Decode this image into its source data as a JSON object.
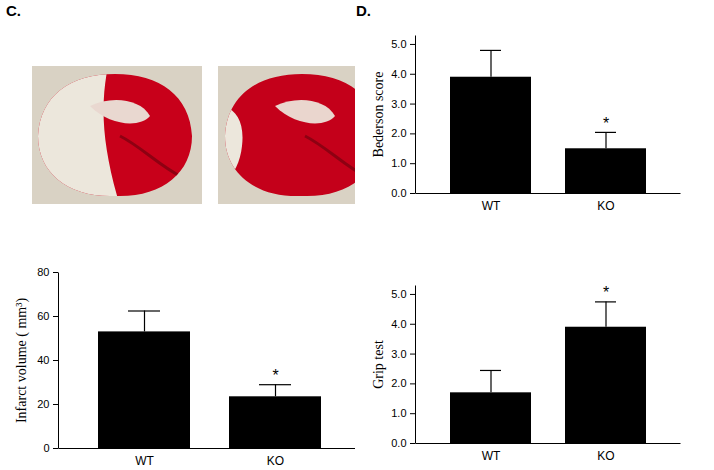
{
  "panels": [
    "C.",
    "D."
  ],
  "chart_data": [
    {
      "type": "bar",
      "y_label": "Infarct volume ( mm³)",
      "categories": [
        "WT",
        "KO"
      ],
      "values": [
        53,
        23.5
      ],
      "errors": [
        9.5,
        5.5
      ],
      "color": "#000000",
      "ylim": [
        0,
        80
      ],
      "yticks": [
        0,
        20,
        40,
        60,
        80
      ],
      "annotations": [
        {
          "category": "KO",
          "text": "*"
        }
      ]
    },
    {
      "type": "bar",
      "y_label": "Bederson score",
      "categories": [
        "WT",
        "KO"
      ],
      "values": [
        3.9,
        1.5
      ],
      "errors": [
        0.9,
        0.55
      ],
      "color": "#000000",
      "ylim": [
        0,
        5.3
      ],
      "yticks": [
        0,
        1,
        2,
        3,
        4,
        5
      ],
      "annotations": [
        {
          "category": "KO",
          "text": "*"
        }
      ]
    },
    {
      "type": "bar",
      "y_label": "Grip test",
      "categories": [
        "WT",
        "KO"
      ],
      "values": [
        1.7,
        3.9
      ],
      "errors": [
        0.75,
        0.85
      ],
      "color": "#000000",
      "ylim": [
        0,
        5.3
      ],
      "yticks": [
        0,
        1,
        2,
        3,
        4,
        5
      ],
      "annotations": [
        {
          "category": "KO",
          "text": "*"
        }
      ]
    }
  ]
}
